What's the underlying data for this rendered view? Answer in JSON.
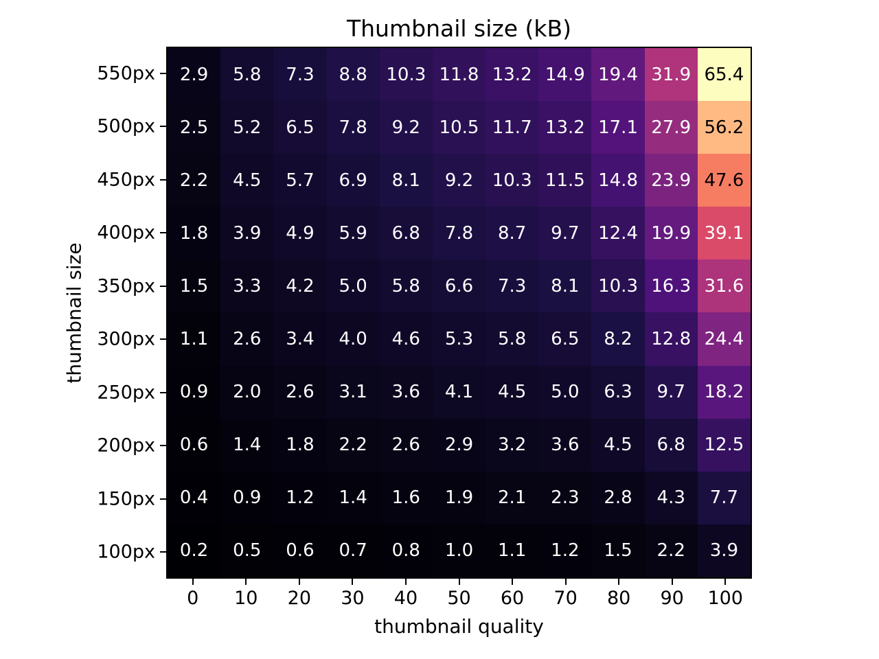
{
  "chart_data": {
    "type": "heatmap",
    "title": "Thumbnail size (kB)",
    "xlabel": "thumbnail quality",
    "ylabel": "thumbnail size",
    "x_ticks": [
      "0",
      "10",
      "20",
      "30",
      "40",
      "50",
      "60",
      "70",
      "80",
      "90",
      "100"
    ],
    "y_ticks": [
      "550px",
      "500px",
      "450px",
      "400px",
      "350px",
      "300px",
      "250px",
      "200px",
      "150px",
      "100px"
    ],
    "values": [
      [
        2.9,
        5.8,
        7.3,
        8.8,
        10.3,
        11.8,
        13.2,
        14.9,
        19.4,
        31.9,
        65.4
      ],
      [
        2.5,
        5.2,
        6.5,
        7.8,
        9.2,
        10.5,
        11.7,
        13.2,
        17.1,
        27.9,
        56.2
      ],
      [
        2.2,
        4.5,
        5.7,
        6.9,
        8.1,
        9.2,
        10.3,
        11.5,
        14.8,
        23.9,
        47.6
      ],
      [
        1.8,
        3.9,
        4.9,
        5.9,
        6.8,
        7.8,
        8.7,
        9.7,
        12.4,
        19.9,
        39.1
      ],
      [
        1.5,
        3.3,
        4.2,
        5.0,
        5.8,
        6.6,
        7.3,
        8.1,
        10.3,
        16.3,
        31.6
      ],
      [
        1.1,
        2.6,
        3.4,
        4.0,
        4.6,
        5.3,
        5.8,
        6.5,
        8.2,
        12.8,
        24.4
      ],
      [
        0.9,
        2.0,
        2.6,
        3.1,
        3.6,
        4.1,
        4.5,
        5.0,
        6.3,
        9.7,
        18.2
      ],
      [
        0.6,
        1.4,
        1.8,
        2.2,
        2.6,
        2.9,
        3.2,
        3.6,
        4.5,
        6.8,
        12.5
      ],
      [
        0.4,
        0.9,
        1.2,
        1.4,
        1.6,
        1.9,
        2.1,
        2.3,
        2.8,
        4.3,
        7.7
      ],
      [
        0.2,
        0.5,
        0.6,
        0.7,
        0.8,
        1.0,
        1.1,
        1.2,
        1.5,
        2.2,
        3.9
      ]
    ],
    "vmin": 0.2,
    "vmax": 65.4,
    "colormap": "magma",
    "value_decimals": 1,
    "grid": false,
    "legend": "none"
  },
  "colors": {
    "magma_stops": [
      "#000004",
      "#1c1044",
      "#4f127b",
      "#812581",
      "#b5367a",
      "#e55064",
      "#fb8761",
      "#fec287",
      "#fcfdbf"
    ],
    "annotation_light": "#ffffff",
    "annotation_dark": "#000000",
    "axis": "#000000",
    "background": "#ffffff"
  }
}
